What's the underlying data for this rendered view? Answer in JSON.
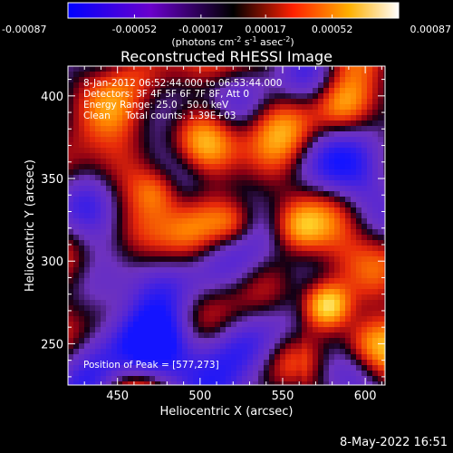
{
  "colorbar": {
    "ticks": [
      "-0.00087",
      "-0.00052",
      "-0.00017",
      "0.00017",
      "0.00052",
      "0.00087"
    ],
    "units_prefix": "(photons cm",
    "units_exp1": "-2",
    "units_mid1": " s",
    "units_exp2": "-1",
    "units_mid2": " asec",
    "units_exp3": "-2",
    "units_suffix": ")",
    "min": -0.00087,
    "max": 0.00087
  },
  "chart_data": {
    "type": "heatmap",
    "title": "Reconstructed RHESSI Image",
    "xlabel": "Heliocentric X (arcsec)",
    "ylabel": "Heliocentric Y (arcsec)",
    "xlim": [
      420,
      612
    ],
    "ylim": [
      225,
      418
    ],
    "x_ticks": [
      450,
      500,
      550,
      600
    ],
    "y_ticks": [
      250,
      300,
      350,
      400
    ],
    "peak": [
      577,
      273
    ],
    "colormap": "blue-purple-red-yellow-white"
  },
  "annotations": {
    "time_range": "8-Jan-2012 06:52:44.000 to 06:53:44.000",
    "detectors": "Detectors: 3F 4F 5F 6F 7F 8F, Att 0",
    "energy": "Energy Range: 25.0 - 50.0 keV",
    "clean": "Clean     Total counts: 1.39E+03",
    "peak_text": "Position of Peak = [577,273]"
  },
  "footer": {
    "date": "8-May-2022 16:51"
  }
}
